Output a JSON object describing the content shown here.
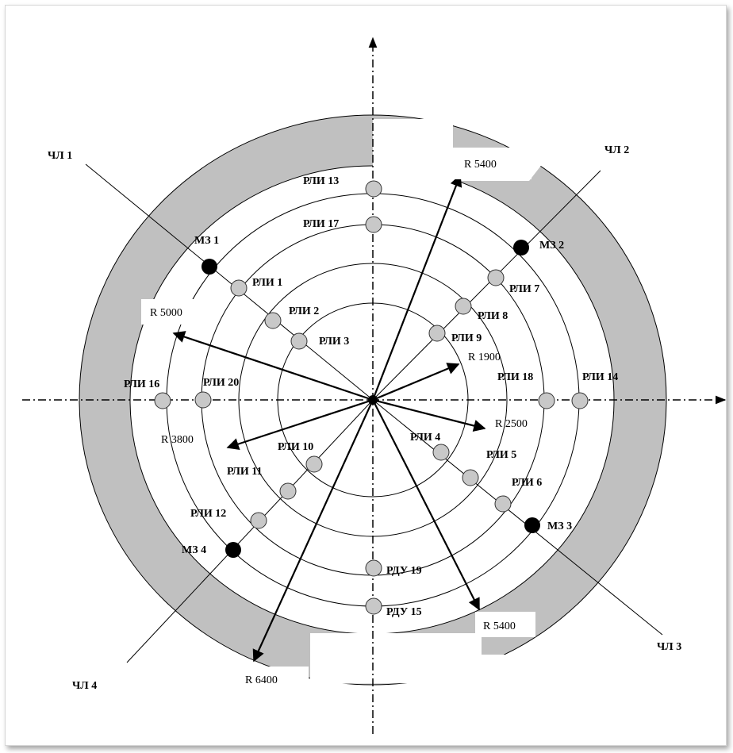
{
  "diagram": {
    "colors": {
      "ring_fill": "#c0c0c0",
      "line": "#000000",
      "node_gray": "#c8c8c8",
      "node_black": "#000000",
      "background": "#ffffff"
    },
    "sectors": {
      "ch1": "ЧЛ 1",
      "ch2": "ЧЛ 2",
      "ch3": "ЧЛ 3",
      "ch4": "ЧЛ 4"
    },
    "mz": {
      "mz1": "МЗ 1",
      "mz2": "МЗ 2",
      "mz3": "МЗ 3",
      "mz4": "МЗ 4"
    },
    "rli": {
      "r1": "РЛИ 1",
      "r2": "РЛИ 2",
      "r3": "РЛИ 3",
      "r4": "РЛИ 4",
      "r5": "РЛИ 5",
      "r6": "РЛИ 6",
      "r7": "РЛИ 7",
      "r8": "РЛИ 8",
      "r9": "РЛИ 9",
      "r10": "РЛИ 10",
      "r11": "РЛИ 11",
      "r12": "РЛИ 12",
      "r13": "РЛИ 13",
      "r14": "РЛИ 14",
      "r16": "РЛИ 16",
      "r17": "РЛИ 17",
      "r18": "РЛИ 18",
      "r20": "РЛИ 20"
    },
    "rdu": {
      "r15": "РДУ 15",
      "r19": "РДУ 19"
    },
    "radii": {
      "r5400_top": "R 5400",
      "r5000": "R 5000",
      "r1900": "R 1900",
      "r2500": "R 2500",
      "r3800": "R 3800",
      "r5400_bottom": "R 5400",
      "r6400": "R 6400"
    }
  }
}
